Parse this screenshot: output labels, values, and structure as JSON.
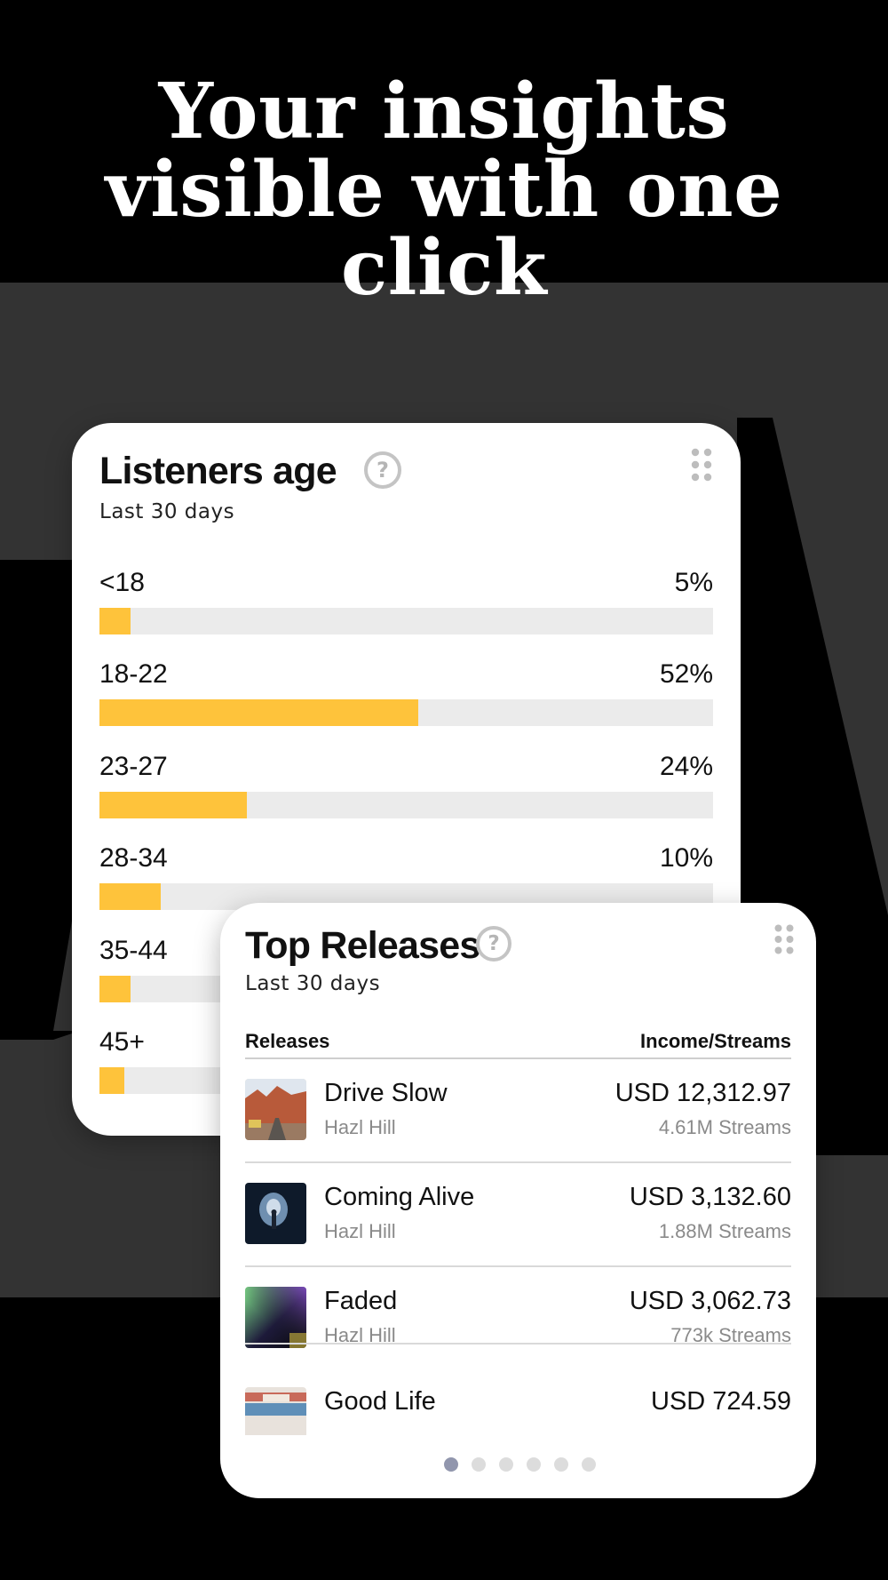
{
  "headline": {
    "line1": "Your insights",
    "line2": "visible with one",
    "line3": "click"
  },
  "listeners_age": {
    "title": "Listeners age",
    "subtitle": "Last 30 days",
    "help_icon": "question-circle-icon",
    "menu_icon": "drag-handle-icon",
    "accent_color": "#fec33b",
    "rows": [
      {
        "label": "<18",
        "value": "5%",
        "fraction": 0.05
      },
      {
        "label": "18-22",
        "value": "52%",
        "fraction": 0.52
      },
      {
        "label": "23-27",
        "value": "24%",
        "fraction": 0.24
      },
      {
        "label": "28-34",
        "value": "10%",
        "fraction": 0.1
      },
      {
        "label": "35-44",
        "value": "5%",
        "fraction": 0.05
      },
      {
        "label": "45+",
        "value": "",
        "fraction": 0.04
      }
    ]
  },
  "top_releases": {
    "title": "Top Releases",
    "subtitle": "Last 30 days",
    "help_icon": "question-circle-icon",
    "menu_icon": "drag-handle-icon",
    "col_releases": "Releases",
    "col_income": "Income/Streams",
    "items": [
      {
        "title": "Drive Slow",
        "artist": "Hazl Hill",
        "income": "USD 12,312.97",
        "streams": "4.61M Streams"
      },
      {
        "title": "Coming Alive",
        "artist": "Hazl Hill",
        "income": "USD 3,132.60",
        "streams": "1.88M Streams"
      },
      {
        "title": "Faded",
        "artist": "Hazl Hill",
        "income": "USD 3,062.73",
        "streams": "773k Streams"
      },
      {
        "title": "Good Life",
        "artist": "",
        "income": "USD 724.59",
        "streams": ""
      }
    ],
    "pagination": {
      "pages": 6,
      "active": 1
    }
  }
}
